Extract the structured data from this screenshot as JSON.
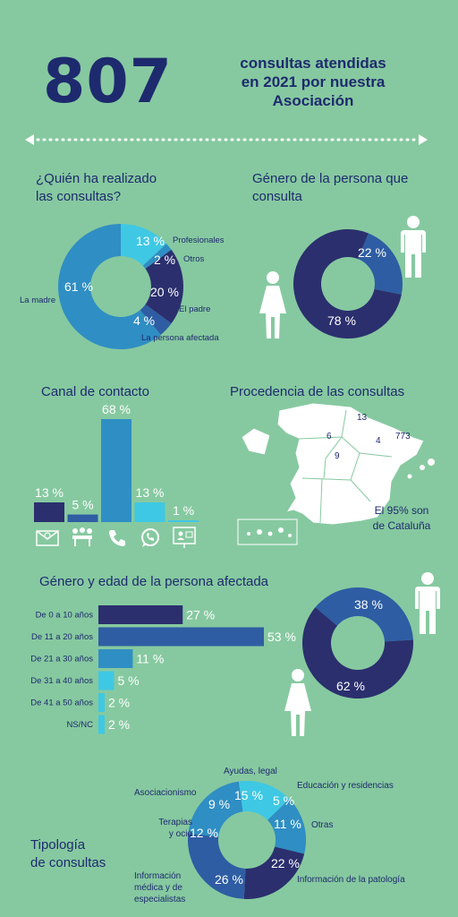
{
  "header": {
    "number": "807",
    "line1": "consultas atendidas",
    "line2": "en 2021 por nuestra",
    "line3": "Asociación"
  },
  "colors": {
    "background": "#86c9a0",
    "navy": "#2b2f6e",
    "blue_mid": "#2e5da3",
    "blue": "#2f8ec3",
    "cyan": "#3fc8e4",
    "text": "#1e2a6e"
  },
  "quien": {
    "title_line1": "¿Quién ha realizado",
    "title_line2": "las consultas?"
  },
  "genero": {
    "title_line1": "Género de la persona que",
    "title_line2": "consulta"
  },
  "canal": {
    "title": "Canal de contacto"
  },
  "procedencia": {
    "title": "Procedencia de las consultas",
    "note_line1": "El 95% son",
    "note_line2": "de Cataluña",
    "map_numbers": [
      "13",
      "6",
      "4",
      "773",
      "9"
    ]
  },
  "edad": {
    "title": "Género y edad de la persona afectada"
  },
  "tipologia": {
    "title_line1": "Tipología",
    "title_line2": "de consultas"
  },
  "chart_data": [
    {
      "type": "pie",
      "title": "¿Quién ha realizado las consultas?",
      "slices": [
        {
          "label": "Profesionales",
          "value": 13,
          "display": "13 %"
        },
        {
          "label": "Otros",
          "value": 2,
          "display": "2 %"
        },
        {
          "label": "El padre",
          "value": 20,
          "display": "20 %"
        },
        {
          "label": "La persona afectada",
          "value": 4,
          "display": "4 %"
        },
        {
          "label": "La madre",
          "value": 61,
          "display": "61 %"
        }
      ]
    },
    {
      "type": "pie",
      "title": "Género de la persona que consulta",
      "slices": [
        {
          "label": "",
          "value": 22,
          "display": "22 %"
        },
        {
          "label": "",
          "value": 78,
          "display": "78 %"
        }
      ]
    },
    {
      "type": "bar",
      "title": "Canal de contacto",
      "categories": [
        "email-icon",
        "meeting-icon",
        "phone-icon",
        "whatsapp-icon",
        "video-call-icon"
      ],
      "values": [
        13,
        5,
        68,
        13,
        1
      ],
      "displays": [
        "13 %",
        "5 %",
        "68 %",
        "13 %",
        "1 %"
      ]
    },
    {
      "type": "bar",
      "title": "Género y edad de la persona afectada",
      "categories": [
        "De 0 a 10 años",
        "De 11 a 20 años",
        "De 21 a 30 años",
        "De 31 a 40 años",
        "De 41 a 50 años",
        "NS/NC"
      ],
      "values": [
        27,
        53,
        11,
        5,
        2,
        2
      ],
      "displays": [
        "27 %",
        "53 %",
        "11 %",
        "5 %",
        "2 %",
        "2 %"
      ]
    },
    {
      "type": "pie",
      "title": "Género y edad de la persona afectada",
      "slices": [
        {
          "label": "",
          "value": 38,
          "display": "38 %"
        },
        {
          "label": "",
          "value": 62,
          "display": "62 %"
        }
      ]
    },
    {
      "type": "pie",
      "title": "Tipología de consultas",
      "slices": [
        {
          "label": "Ayudas, legal",
          "value": 15,
          "display": "15 %"
        },
        {
          "label": "Educación y residencias",
          "value": 5,
          "display": "5 %"
        },
        {
          "label": "Otras",
          "value": 11,
          "display": "11 %"
        },
        {
          "label": "Información de la patología",
          "value": 22,
          "display": "22 %"
        },
        {
          "label": "Información médica y de especialistas",
          "value": 26,
          "display": "26 %"
        },
        {
          "label": "Terapias y ocio",
          "value": 12,
          "display": "12 %"
        },
        {
          "label": "Asociacionismo",
          "value": 9,
          "display": "9 %"
        }
      ]
    }
  ]
}
